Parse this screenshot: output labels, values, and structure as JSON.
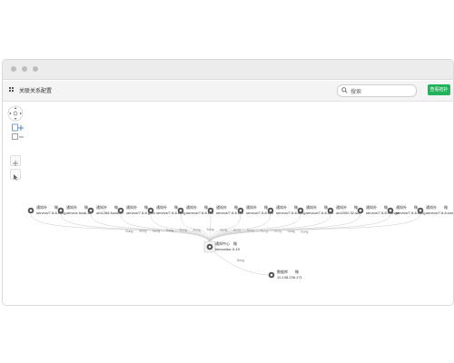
{
  "app": {
    "title": "关联关系配置",
    "search_placeholder": "搜索",
    "query_button": "查看拓扑"
  },
  "graph": {
    "center_node": {
      "title": "通知中心",
      "icon_mark": "微",
      "subtitle": "bkmonitor-3-19"
    },
    "bottom_node": {
      "title": "数据库",
      "icon_mark": "微",
      "subtitle": "10.138.226.171"
    },
    "top_nodes": [
      {
        "title": "通知外",
        "icon_mark": "微",
        "subtitle": "service/7.8.8.sung"
      },
      {
        "title": "通知外",
        "icon_mark": "微",
        "subtitle": "service.local.38"
      },
      {
        "title": "通知外",
        "icon_mark": "微",
        "subtitle": "ufo1268.function"
      },
      {
        "title": "通知外",
        "icon_mark": "微",
        "subtitle": "service/7.8.8.gran"
      },
      {
        "title": "通知外",
        "icon_mark": "微",
        "subtitle": "service/7.8.8.sung"
      },
      {
        "title": "通知外",
        "icon_mark": "微",
        "subtitle": "service/7.8.8.sub."
      },
      {
        "title": "通知外",
        "icon_mark": "微",
        "subtitle": "service/7.8.8.sun"
      },
      {
        "title": "通知外",
        "icon_mark": "微",
        "subtitle": "service/7.8.8.sun"
      },
      {
        "title": "通知外",
        "icon_mark": "微",
        "subtitle": "service/7.8.8.sung"
      },
      {
        "title": "通知外",
        "icon_mark": "微",
        "subtitle": "service/7.8.8.sub."
      },
      {
        "title": "通知外",
        "icon_mark": "微",
        "subtitle": "ufo2000.32.sun"
      },
      {
        "title": "通知外",
        "icon_mark": "微",
        "subtitle": "service/7.8.8.triangle"
      },
      {
        "title": "通知外",
        "icon_mark": "微",
        "subtitle": "service/7.8.8.sung"
      },
      {
        "title": "通知外",
        "icon_mark": "微",
        "subtitle": "service/7.8.8.sung"
      }
    ],
    "edge_labels": [
      "Sung",
      "Sung",
      "Sung",
      "Sung",
      "Sung",
      "Sung",
      "Sung",
      "Sung",
      "Sung",
      "Sung",
      "Sung",
      "Sung",
      "Sung",
      "Sung"
    ],
    "bottom_edge_label": "Sung"
  },
  "colors": {
    "accent": "#21b35c",
    "edge": "#c9c9c9"
  }
}
